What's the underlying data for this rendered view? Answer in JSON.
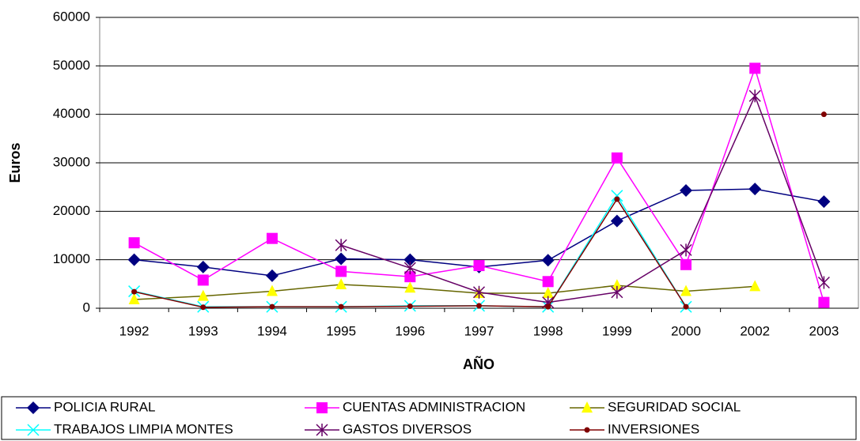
{
  "chart_data": {
    "type": "line",
    "xlabel": "AÑO",
    "ylabel": "Euros",
    "categories": [
      "1992",
      "1993",
      "1994",
      "1995",
      "1996",
      "1997",
      "1998",
      "1999",
      "2000",
      "2002",
      "2003"
    ],
    "ylim": [
      0,
      60000
    ],
    "yticks": [
      0,
      10000,
      20000,
      30000,
      40000,
      50000,
      60000
    ],
    "grid": true,
    "legend": "bottom",
    "series": [
      {
        "name": "POLICIA RURAL",
        "color": "#000080",
        "marker": "diamond",
        "marker_color": "#000080",
        "values": [
          10000,
          8500,
          6700,
          10200,
          10000,
          8500,
          9900,
          18000,
          24300,
          24600,
          22000
        ]
      },
      {
        "name": "CUENTAS ADMINISTRACION",
        "color": "#ff00ff",
        "marker": "square",
        "marker_color": "#ff00ff",
        "values": [
          13500,
          5800,
          14400,
          7600,
          6500,
          8800,
          5500,
          31000,
          9000,
          49500,
          1200
        ]
      },
      {
        "name": "SEGURIDAD SOCIAL",
        "color": "#666600",
        "marker": "triangle",
        "marker_color": "#ffff00",
        "values": [
          1800,
          2500,
          3500,
          4900,
          4200,
          3100,
          3100,
          4700,
          3500,
          4500,
          null
        ]
      },
      {
        "name": "TRABAJOS LIMPIA MONTES",
        "color": "#00ffff",
        "marker": "x",
        "marker_color": "#00ffff",
        "values": [
          3500,
          300,
          300,
          300,
          500,
          500,
          300,
          23200,
          300,
          null,
          null
        ]
      },
      {
        "name": "GASTOS DIVERSOS",
        "color": "#660066",
        "marker": "star",
        "marker_color": "#660066",
        "values": [
          null,
          null,
          null,
          13000,
          8300,
          3300,
          1200,
          3300,
          12000,
          43800,
          5300
        ]
      },
      {
        "name": "INVERSIONES",
        "color": "#800000",
        "marker": "circle",
        "marker_color": "#800000",
        "values": [
          3400,
          200,
          300,
          300,
          400,
          500,
          300,
          22500,
          300,
          null,
          40000
        ]
      }
    ]
  }
}
